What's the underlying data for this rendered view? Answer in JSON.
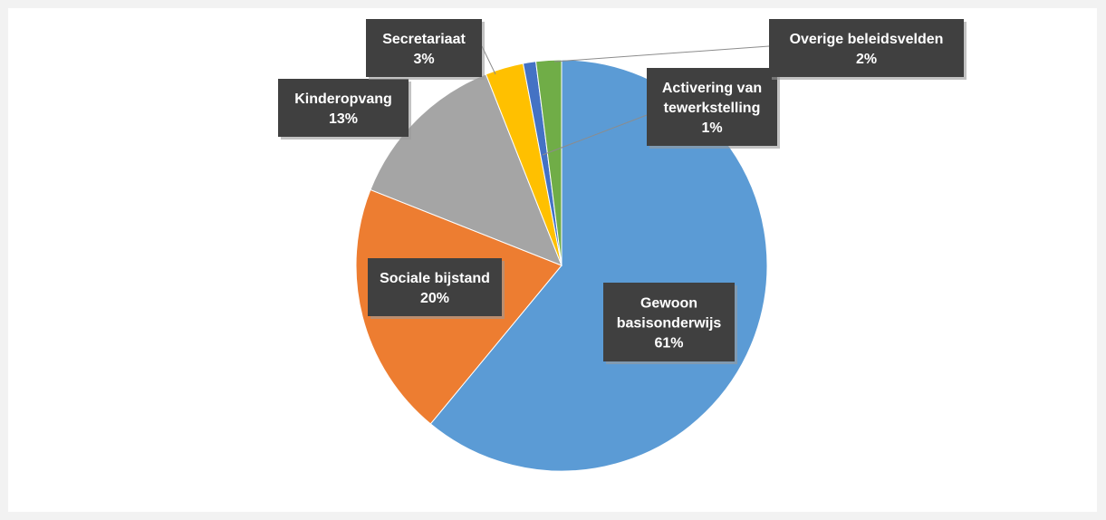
{
  "chart_data": {
    "type": "pie",
    "slices": [
      {
        "label": "Gewoon basisonderwijs",
        "value": 61,
        "pct_label": "61%",
        "color": "#5B9BD5"
      },
      {
        "label": "Sociale bijstand",
        "value": 20,
        "pct_label": "20%",
        "color": "#ED7D31"
      },
      {
        "label": "Kinderopvang",
        "value": 13,
        "pct_label": "13%",
        "color": "#A5A5A5"
      },
      {
        "label": "Secretariaat",
        "value": 3,
        "pct_label": "3%",
        "color": "#FFC000"
      },
      {
        "label": "Activering van tewerkstelling",
        "value": 1,
        "pct_label": "1%",
        "color": "#4472C4"
      },
      {
        "label": "Overige beleidsvelden",
        "value": 2,
        "pct_label": "2%",
        "color": "#70AD47"
      }
    ],
    "legend": "none",
    "label_style": "dark callout boxes"
  }
}
